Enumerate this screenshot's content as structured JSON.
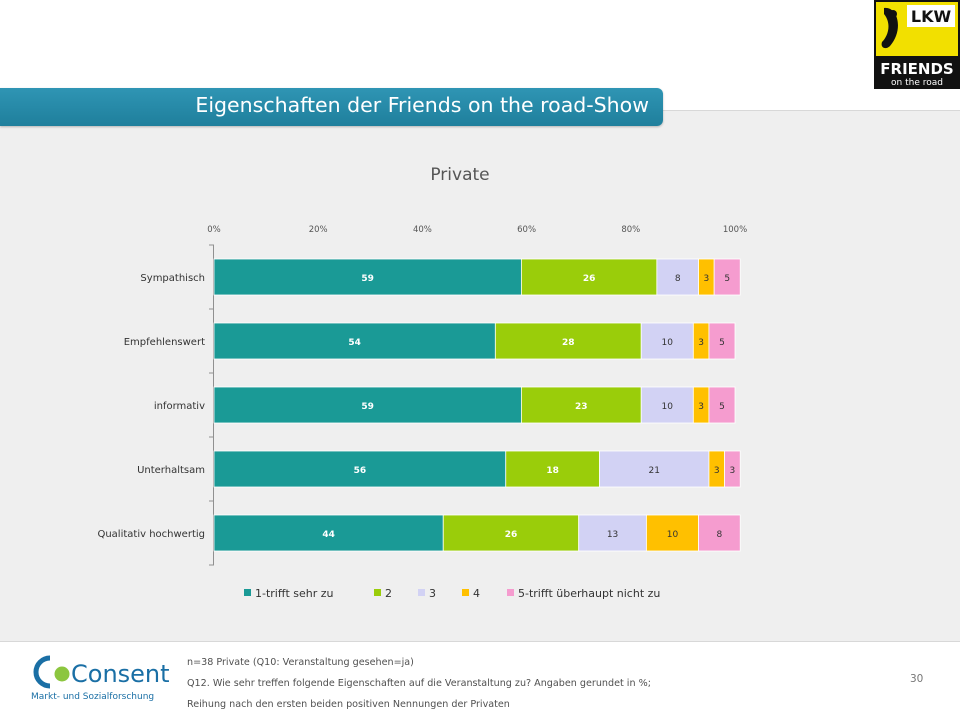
{
  "slide": {
    "title": "Eigenschaften der Friends on the road-Show",
    "page_number": "30"
  },
  "logos": {
    "lkw": {
      "text": "LKW",
      "line1": "FRIENDS",
      "line2": "on the road"
    },
    "consent": {
      "name": "Consent",
      "tagline": "Markt- und Sozialforschung"
    }
  },
  "footer": {
    "line1": "n=38 Private (Q10: Veranstaltung gesehen=ja)",
    "line2": "Q12. Wie sehr treffen folgende Eigenschaften auf die Veranstaltung zu? Angaben gerundet in %;",
    "line3": "Reihung nach den ersten beiden positiven Nennungen der Privaten"
  },
  "chart_data": {
    "type": "bar",
    "orientation": "horizontal",
    "stacked": true,
    "title": "Private",
    "xlim": [
      0,
      100
    ],
    "x_ticks": [
      "0%",
      "20%",
      "40%",
      "60%",
      "80%",
      "100%"
    ],
    "categories": [
      "Sympathisch",
      "Empfehlenswert",
      "informativ",
      "Unterhaltsam",
      "Qualitativ hochwertig"
    ],
    "series": [
      {
        "name": "1-trifft sehr zu",
        "color": "#1a9a96",
        "label_color": "#ffffff",
        "values": [
          59,
          54,
          59,
          56,
          44
        ]
      },
      {
        "name": "2",
        "color": "#9acd0a",
        "label_color": "#ffffff",
        "values": [
          26,
          28,
          23,
          18,
          26
        ]
      },
      {
        "name": "3",
        "color": "#d2d2f4",
        "label_color": "#333333",
        "values": [
          8,
          10,
          10,
          21,
          13
        ]
      },
      {
        "name": "4",
        "color": "#ffc000",
        "label_color": "#333333",
        "values": [
          3,
          3,
          3,
          3,
          10
        ]
      },
      {
        "name": "5-trifft überhaupt nicht zu",
        "color": "#f59ccf",
        "label_color": "#333333",
        "values": [
          5,
          5,
          5,
          3,
          8
        ]
      }
    ],
    "legend_position": "bottom",
    "grid": false
  }
}
